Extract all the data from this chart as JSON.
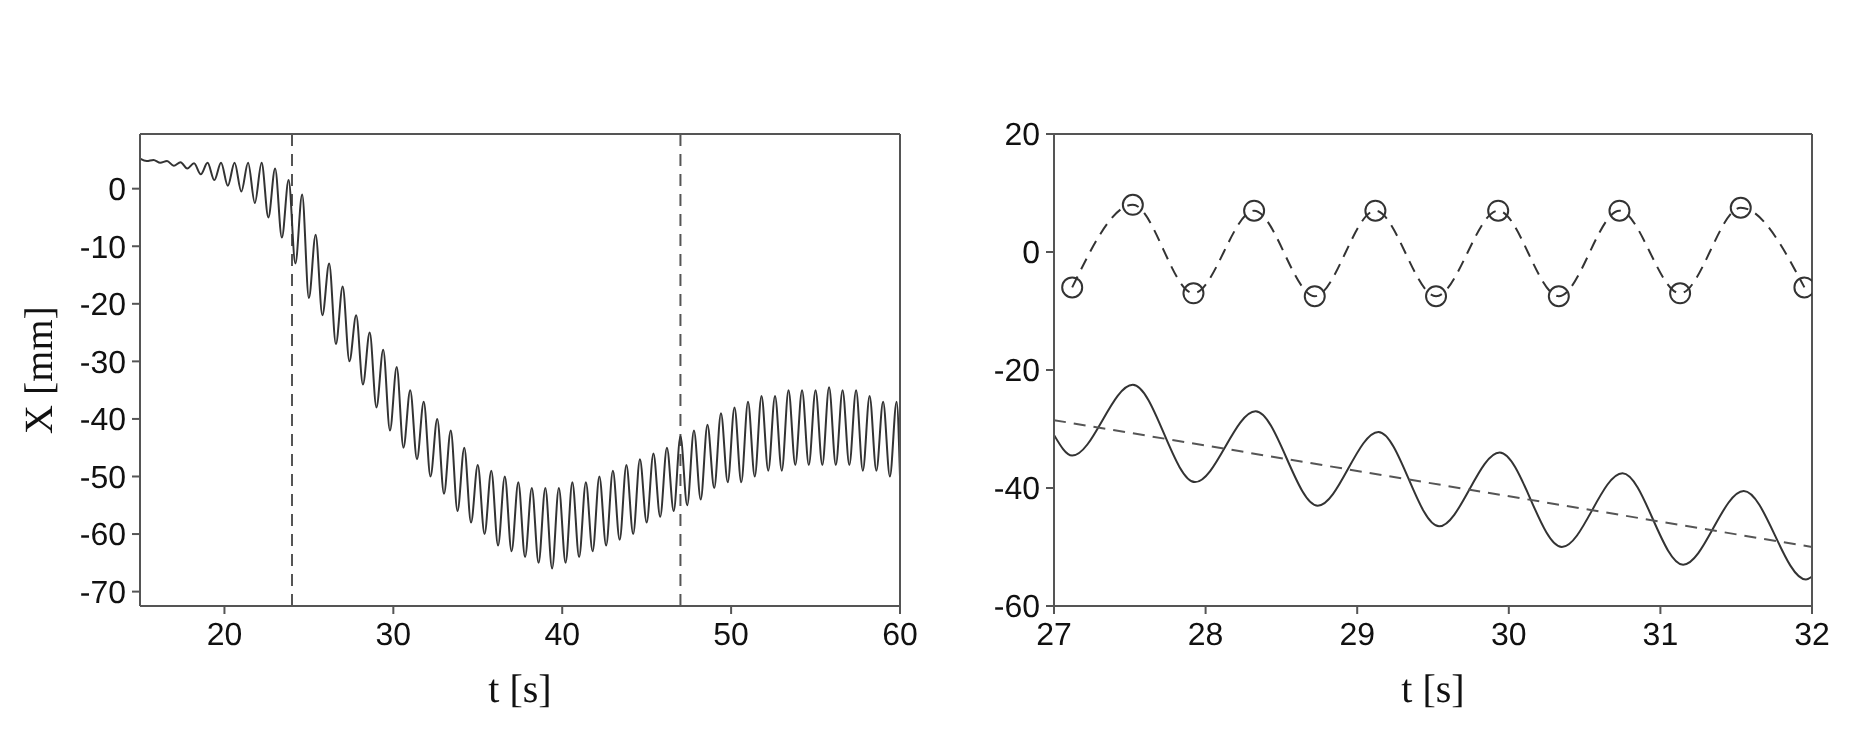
{
  "chart_data": [
    {
      "type": "line",
      "xlabel": "t [s]",
      "ylabel": "X [mm]",
      "xlim": [
        15,
        60
      ],
      "xticks": [
        20,
        30,
        40,
        50,
        60
      ],
      "ylim": [
        -72.5,
        9.5
      ],
      "yticks": [
        -70,
        -60,
        -50,
        -40,
        -30,
        -20,
        -10,
        0
      ],
      "line_style": "solid",
      "marker": "none",
      "ref_lines": [
        {
          "axis": "x",
          "value": 24,
          "line_style": "dashed",
          "color": "#555555"
        },
        {
          "axis": "x",
          "value": 47,
          "line_style": "dashed",
          "color": "#555555"
        }
      ],
      "series": [
        {
          "color": "#333333",
          "x": [
            15.0,
            15.4,
            15.8,
            16.2,
            16.6,
            17.0,
            17.4,
            17.8,
            18.2,
            18.6,
            19.0,
            19.4,
            19.8,
            20.2,
            20.6,
            21.0,
            21.4,
            21.8,
            22.2,
            22.6,
            23.0,
            23.4,
            23.8,
            24.2,
            24.6,
            25.0,
            25.4,
            25.8,
            26.2,
            26.6,
            27.0,
            27.4,
            27.8,
            28.2,
            28.6,
            29.0,
            29.4,
            29.8,
            30.2,
            30.6,
            31.0,
            31.4,
            31.8,
            32.2,
            32.6,
            33.0,
            33.4,
            33.8,
            34.2,
            34.6,
            35.0,
            35.4,
            35.8,
            36.2,
            36.6,
            37.0,
            37.4,
            37.8,
            38.2,
            38.6,
            39.0,
            39.4,
            39.8,
            40.2,
            40.6,
            41.0,
            41.4,
            41.8,
            42.2,
            42.6,
            43.0,
            43.4,
            43.8,
            44.2,
            44.6,
            45.0,
            45.4,
            45.8,
            46.2,
            46.6,
            47.0,
            47.4,
            47.8,
            48.2,
            48.6,
            49.0,
            49.4,
            49.8,
            50.2,
            50.6,
            51.0,
            51.4,
            51.8,
            52.2,
            52.6,
            53.0,
            53.4,
            53.8,
            54.2,
            54.6,
            55.0,
            55.4,
            55.8,
            56.2,
            56.6,
            57.0,
            57.4,
            57.8,
            58.2,
            58.6,
            59.0,
            59.4,
            59.8,
            60.0
          ],
          "values": [
            5.2,
            4.8,
            5.0,
            4.5,
            4.8,
            4.0,
            4.6,
            3.5,
            4.4,
            2.5,
            4.5,
            1.5,
            4.5,
            0.5,
            4.5,
            -0.5,
            4.5,
            -2.5,
            4.5,
            -5,
            3.5,
            -8.5,
            1.5,
            -13,
            -1,
            -19,
            -8,
            -22,
            -13,
            -27,
            -17,
            -30,
            -22,
            -34,
            -25,
            -38,
            -28,
            -42,
            -31,
            -45,
            -35,
            -47,
            -37,
            -50,
            -40,
            -53,
            -42,
            -56,
            -45,
            -58,
            -48,
            -60,
            -49,
            -62,
            -50,
            -63,
            -51,
            -64,
            -52,
            -65,
            -52,
            -66,
            -52,
            -65,
            -51,
            -64,
            -51,
            -63,
            -50,
            -62,
            -49,
            -61,
            -48,
            -60,
            -47,
            -58,
            -46,
            -57,
            -45,
            -56,
            -43,
            -55,
            -42,
            -54,
            -41,
            -52,
            -39,
            -51,
            -38,
            -51,
            -37,
            -50,
            -36,
            -49,
            -36,
            -49,
            -35,
            -48,
            -35,
            -48,
            -35,
            -48,
            -34.5,
            -48,
            -35,
            -48,
            -35,
            -49,
            -36,
            -49,
            -37,
            -50,
            -37,
            -50
          ]
        }
      ]
    },
    {
      "type": "line",
      "xlabel": "t [s]",
      "xlim": [
        27,
        32
      ],
      "xticks": [
        27,
        28,
        29,
        30,
        31,
        32
      ],
      "ylim": [
        -60,
        20
      ],
      "yticks": [
        -60,
        -40,
        -20,
        0,
        20
      ],
      "series": [
        {
          "color": "#333333",
          "marker": "circle",
          "line_style": "dashed",
          "x": [
            27.12,
            27.52,
            27.92,
            28.32,
            28.72,
            29.12,
            29.52,
            29.93,
            30.33,
            30.73,
            31.13,
            31.53,
            31.95
          ],
          "values": [
            -6,
            8,
            -7,
            7,
            -7.5,
            7,
            -7.5,
            7,
            -7.5,
            7,
            -7,
            7.5,
            -6
          ]
        },
        {
          "color": "#333333",
          "marker": "none",
          "line_style": "solid",
          "x": [
            27.0,
            27.12,
            27.52,
            27.93,
            28.33,
            28.74,
            29.14,
            29.54,
            29.94,
            30.35,
            30.75,
            31.15,
            31.55,
            31.96,
            32.0
          ],
          "values": [
            -31,
            -34.5,
            -22.5,
            -39,
            -27,
            -43,
            -30.5,
            -46.5,
            -34,
            -50,
            -37.5,
            -53,
            -40.5,
            -55.5,
            -55
          ]
        },
        {
          "color": "#555555",
          "marker": "none",
          "line_style": "dashed",
          "x": [
            27,
            32
          ],
          "values": [
            -28.5,
            -50
          ]
        }
      ]
    }
  ]
}
